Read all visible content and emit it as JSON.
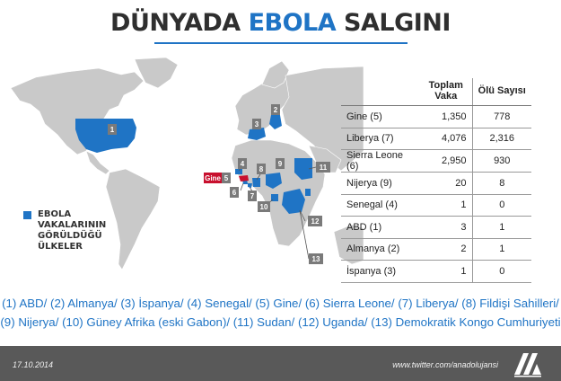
{
  "title": {
    "part1": "DÜNYADA",
    "part2": "EBOLA",
    "part3": "SALGINI"
  },
  "colors": {
    "accent": "#1f74c5",
    "land": "#c9c9c9",
    "highlight": "#c8102e",
    "footer": "#595959"
  },
  "legend": {
    "text": "EBOLA\nVAKALARININ\nGÖRÜLDÜĞÜ\nÜLKELER"
  },
  "map_labels": {
    "m1": "1",
    "m2": "2",
    "m3": "3",
    "m4": "4",
    "m5": "5",
    "m6": "6",
    "m7": "7",
    "m8": "8",
    "m9": "9",
    "m10": "10",
    "m11": "11",
    "m12": "12",
    "m13": "13",
    "gine": "Gine"
  },
  "table": {
    "headers": {
      "cases": "Toplam Vaka",
      "deaths": "Ölü Sayısı"
    },
    "rows": [
      {
        "country": "Gine (5)",
        "cases": "1,350",
        "deaths": "778"
      },
      {
        "country": "Liberya (7)",
        "cases": "4,076",
        "deaths": "2,316"
      },
      {
        "country": "Sierra Leone (6)",
        "cases": "2,950",
        "deaths": "930"
      },
      {
        "country": "Nijerya (9)",
        "cases": "20",
        "deaths": "8"
      },
      {
        "country": "Senegal (4)",
        "cases": "1",
        "deaths": "0"
      },
      {
        "country": "ABD (1)",
        "cases": "3",
        "deaths": "1"
      },
      {
        "country": "Almanya (2)",
        "cases": "2",
        "deaths": "1"
      },
      {
        "country": "İspanya (3)",
        "cases": "1",
        "deaths": "0"
      }
    ]
  },
  "country_list": {
    "line1": "(1) ABD/ (2) Almanya/ (3) İspanya/ (4) Senegal/ (5) Gine/ (6) Sierra Leone/ (7) Liberya/ (8) Fildişi Sahilleri/",
    "line2": "(9) Nijerya/ (10) Güney Afrika (eski Gabon)/ (11) Sudan/ (12) Uganda/ (13) Demokratik Kongo Cumhuriyeti"
  },
  "footer": {
    "date": "17.10.2014",
    "website": "www.twitter.com/anadolujansi"
  },
  "icons": {
    "logo": "anadolu-agency-logo-icon"
  }
}
